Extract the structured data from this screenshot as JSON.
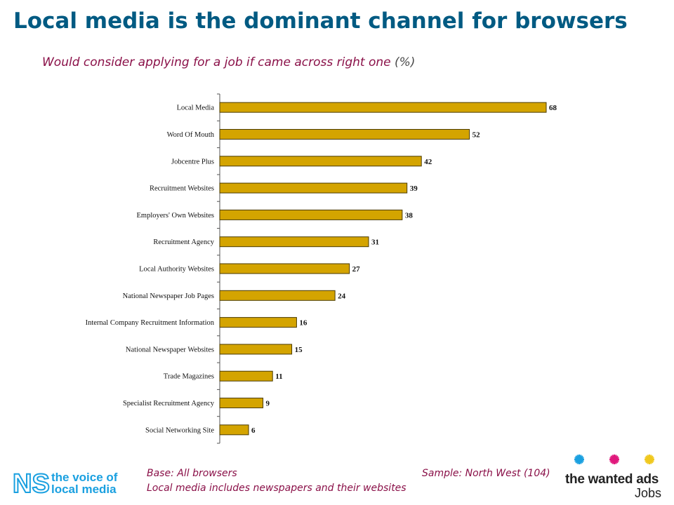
{
  "slide": {
    "title": "Local media is the dominant channel for browsers",
    "subtitle": "Would consider applying for a job if came across right one",
    "subtitle_unit": "(%)"
  },
  "footer": {
    "base": "Base: All browsers",
    "note": "Local media includes newspapers and their websites",
    "sample": "Sample:  North West (104)"
  },
  "logos": {
    "ns_mark": "NS",
    "ns_line1": "the voice of",
    "ns_line2": "local media",
    "wanted_ads": "the wanted ads",
    "jobs": "Jobs"
  },
  "colors": {
    "title": "#005a82",
    "subtitle": "#8a1048",
    "bar_fill": "#d4a400",
    "bar_stroke": "#4a3a00",
    "star_cyan": "#1aa0e0",
    "star_magenta": "#e0187c",
    "star_yellow": "#f0c81e"
  },
  "chart_data": {
    "type": "bar",
    "orientation": "horizontal",
    "categories": [
      "Local Media",
      "Word Of Mouth",
      "Jobcentre Plus",
      "Recruitment Websites",
      "Employers' Own Websites",
      "Recruitment Agency",
      "Local Authority Websites",
      "National Newspaper Job Pages",
      "Internal Company Recruitment Information",
      "National Newspaper Websites",
      "Trade Magazines",
      "Specialist Recruitment Agency",
      "Social Networking Site"
    ],
    "values": [
      68,
      52,
      42,
      39,
      38,
      31,
      27,
      24,
      16,
      15,
      11,
      9,
      6
    ],
    "xlim": [
      0,
      70
    ],
    "grid": false,
    "data_labels": true
  }
}
